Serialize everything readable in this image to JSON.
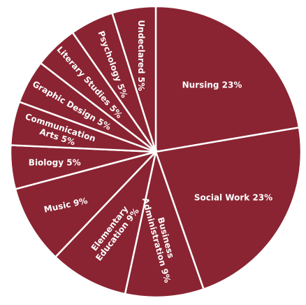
{
  "chart_data": {
    "type": "pie",
    "title": "",
    "slices": [
      {
        "label": "Nursing",
        "value": 23,
        "display": "Nursing  23%"
      },
      {
        "label": "Social Work",
        "value": 23,
        "display": "Social Work  23%"
      },
      {
        "label": "Business Administration",
        "value": 9,
        "display": [
          "Business",
          "Administration  9%"
        ]
      },
      {
        "label": "Elementary Education",
        "value": 9,
        "display": [
          "Elementary",
          "Education  9%"
        ]
      },
      {
        "label": "Music",
        "value": 9,
        "display": "Music  9%"
      },
      {
        "label": "Biology",
        "value": 5,
        "display": "Biology  5%"
      },
      {
        "label": "Communication Arts",
        "value": 5,
        "display": [
          "Communication",
          "Arts  5%"
        ]
      },
      {
        "label": "Graphic Design",
        "value": 5,
        "display": "Graphic Design  5%"
      },
      {
        "label": "Literary Studies",
        "value": 5,
        "display": "Literary Studies  5%"
      },
      {
        "label": "Psychology",
        "value": 5,
        "display": "Psychology  5%"
      },
      {
        "label": "Undeclared",
        "value": 5,
        "display": "Undeclared  5%"
      }
    ],
    "colors": {
      "slice": "#8a2432",
      "border": "#ffffff",
      "text": "#ffffff"
    }
  }
}
